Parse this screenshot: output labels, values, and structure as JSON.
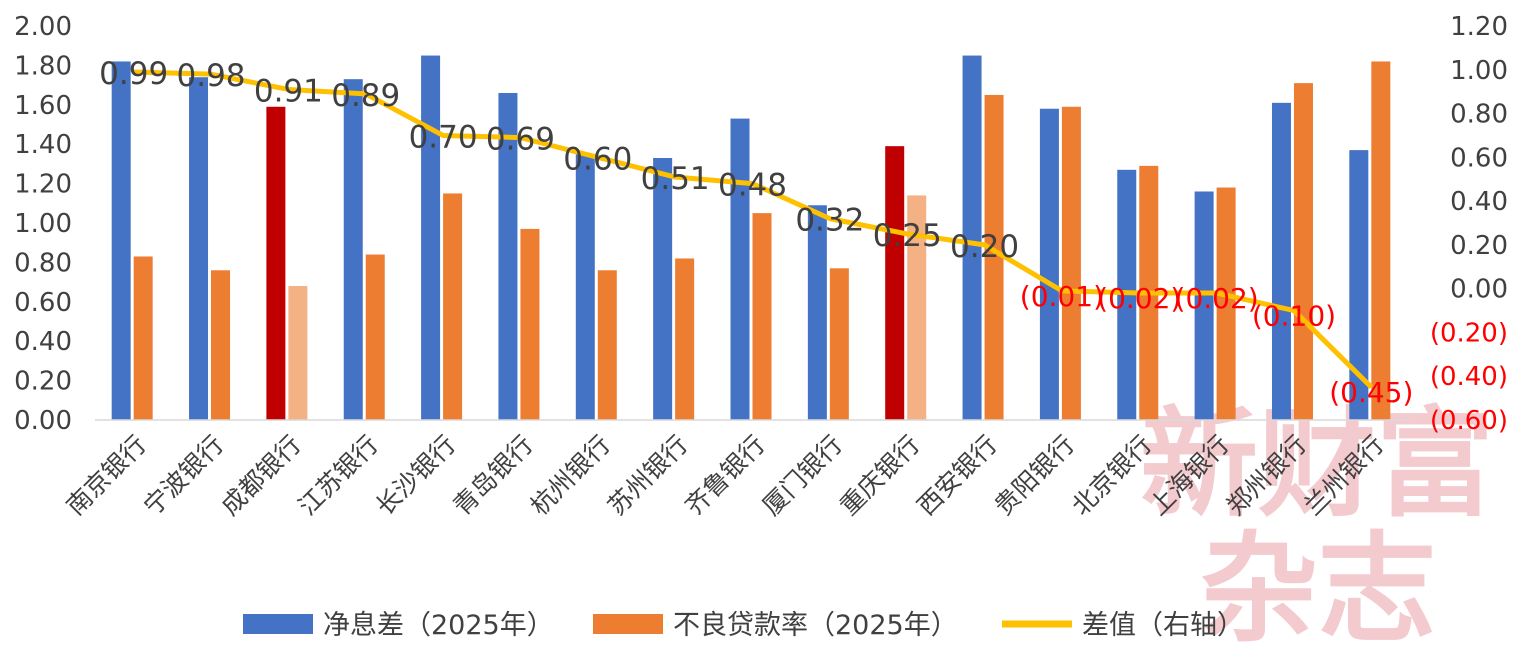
{
  "chart_data": {
    "type": "bar",
    "categories": [
      "南京银行",
      "宁波银行",
      "成都银行",
      "江苏银行",
      "长沙银行",
      "青岛银行",
      "杭州银行",
      "苏州银行",
      "齐鲁银行",
      "厦门银行",
      "重庆银行",
      "西安银行",
      "贵阳银行",
      "北京银行",
      "上海银行",
      "郑州银行",
      "兰州银行"
    ],
    "series": [
      {
        "name": "净息差（2025年）",
        "kind": "bar",
        "axis": "left",
        "color": "#4472c4",
        "values": [
          1.82,
          1.74,
          1.59,
          1.73,
          1.85,
          1.66,
          1.35,
          1.33,
          1.53,
          1.09,
          1.39,
          1.85,
          1.58,
          1.27,
          1.16,
          1.61,
          1.37
        ]
      },
      {
        "name": "不良贷款率（2025年）",
        "kind": "bar",
        "axis": "left",
        "color": "#ed7d31",
        "values": [
          0.83,
          0.76,
          0.68,
          0.84,
          1.15,
          0.97,
          0.76,
          0.82,
          1.05,
          0.77,
          1.14,
          1.65,
          1.59,
          1.29,
          1.18,
          1.71,
          1.82
        ]
      },
      {
        "name": "差值（右轴）",
        "kind": "line",
        "axis": "right",
        "color": "#ffc000",
        "values": [
          0.99,
          0.98,
          0.91,
          0.89,
          0.7,
          0.69,
          0.6,
          0.51,
          0.48,
          0.32,
          0.25,
          0.2,
          -0.01,
          -0.02,
          -0.02,
          -0.1,
          -0.45
        ]
      }
    ],
    "data_labels": [
      "0.99",
      "0.98",
      "0.91",
      "0.89",
      "0.70",
      "0.69",
      "0.60",
      "0.51",
      "0.48",
      "0.32",
      "0.25",
      "0.20",
      "(0.01)",
      "(0.02)",
      "(0.02)",
      "(0.10)",
      "(0.45)"
    ],
    "highlight": {
      "categories": [
        "成都银行",
        "重庆银行"
      ],
      "bar_color": "#c00000",
      "bar2_color": "#f4b183"
    },
    "negative_color": "#ff0000",
    "y_left": {
      "range": [
        0,
        2.0
      ],
      "ticks": [
        "0.00",
        "0.20",
        "0.40",
        "0.60",
        "0.80",
        "1.00",
        "1.20",
        "1.40",
        "1.60",
        "1.80",
        "2.00"
      ]
    },
    "y_right": {
      "range": [
        -0.6,
        1.2
      ],
      "ticks": [
        "(0.60)",
        "(0.40)",
        "(0.20)",
        "0.00",
        "0.20",
        "0.40",
        "0.60",
        "0.80",
        "1.00",
        "1.20"
      ]
    },
    "legend": {
      "position": "bottom"
    },
    "grid": false,
    "watermark": [
      "新财富",
      "杂志"
    ]
  }
}
